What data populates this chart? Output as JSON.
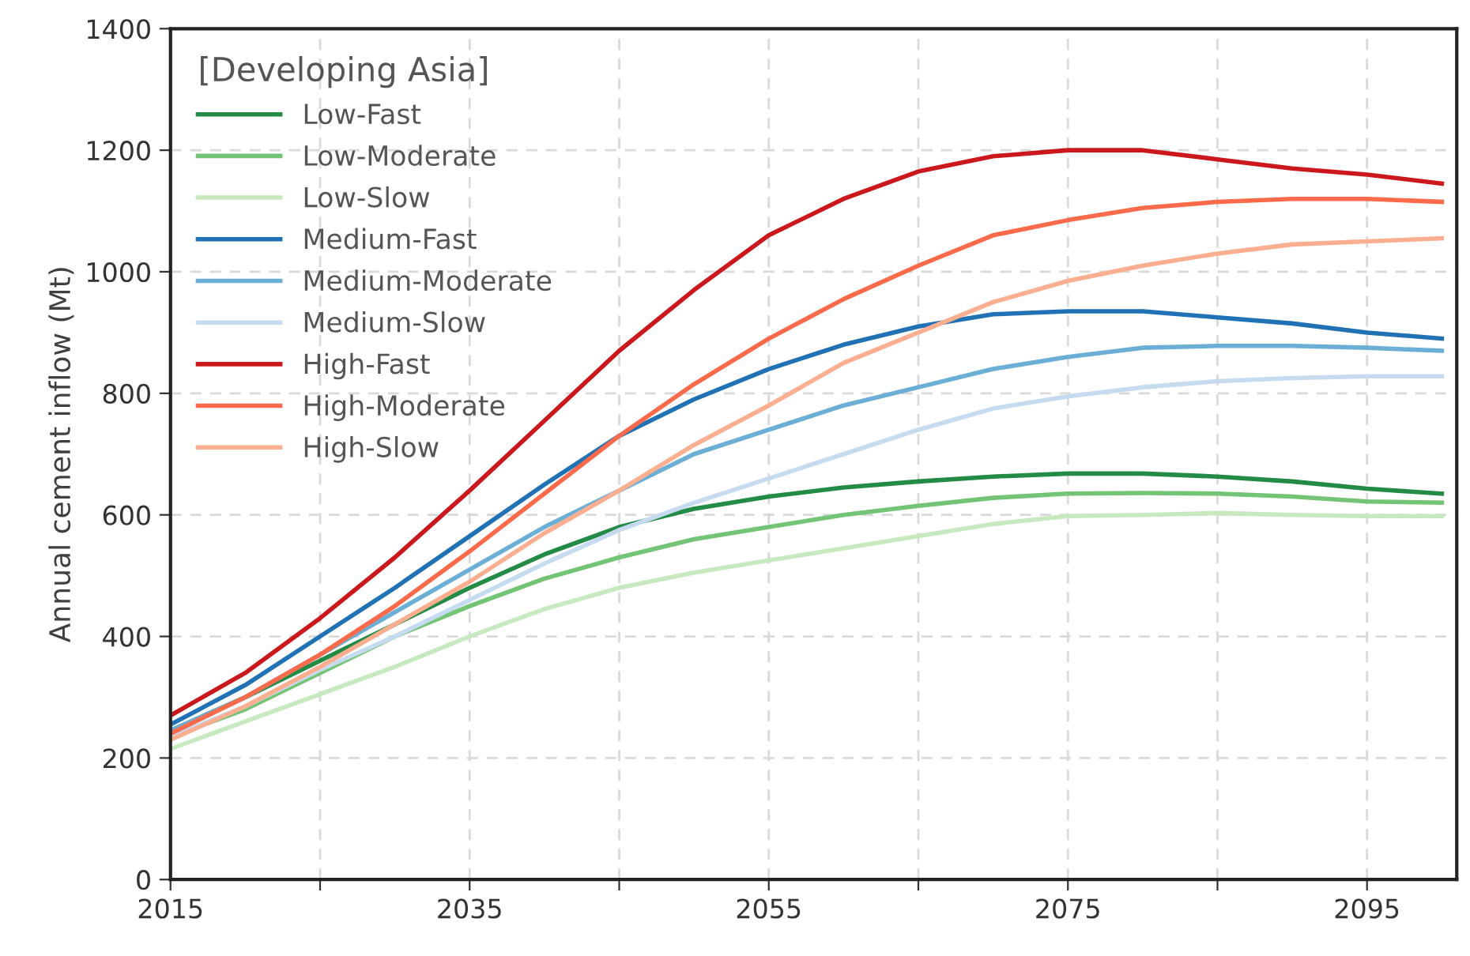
{
  "chart_data": {
    "type": "line",
    "ylabel": "Annual cement inflow (Mt)",
    "legend_title": "[Developing Asia]",
    "x": [
      2015,
      2020,
      2025,
      2030,
      2035,
      2040,
      2045,
      2050,
      2055,
      2060,
      2065,
      2070,
      2075,
      2080,
      2085,
      2090,
      2095,
      2100
    ],
    "series": [
      {
        "name": "Low-Fast",
        "color": "#238b45",
        "values": [
          245,
          300,
          360,
          420,
          480,
          535,
          580,
          610,
          630,
          645,
          655,
          663,
          668,
          668,
          663,
          655,
          643,
          635
        ]
      },
      {
        "name": "Low-Moderate",
        "color": "#74c476",
        "values": [
          235,
          280,
          340,
          400,
          450,
          495,
          530,
          560,
          580,
          600,
          615,
          628,
          635,
          636,
          635,
          630,
          622,
          620
        ]
      },
      {
        "name": "Low-Slow",
        "color": "#c7e9c0",
        "values": [
          215,
          260,
          305,
          350,
          400,
          445,
          480,
          505,
          525,
          545,
          565,
          585,
          598,
          600,
          603,
          600,
          598,
          598
        ]
      },
      {
        "name": "Medium-Fast",
        "color": "#2171b5",
        "values": [
          255,
          320,
          400,
          480,
          565,
          650,
          730,
          790,
          840,
          880,
          910,
          930,
          935,
          935,
          925,
          915,
          900,
          890
        ]
      },
      {
        "name": "Medium-Moderate",
        "color": "#6baed6",
        "values": [
          245,
          300,
          370,
          440,
          510,
          580,
          640,
          700,
          740,
          780,
          810,
          840,
          860,
          875,
          878,
          878,
          875,
          870
        ]
      },
      {
        "name": "Medium-Slow",
        "color": "#c6dbef",
        "values": [
          235,
          285,
          345,
          400,
          460,
          520,
          575,
          620,
          660,
          700,
          740,
          775,
          795,
          810,
          820,
          825,
          828,
          828
        ]
      },
      {
        "name": "High-Fast",
        "color": "#cb181d",
        "values": [
          270,
          340,
          430,
          530,
          640,
          755,
          870,
          970,
          1060,
          1120,
          1165,
          1190,
          1200,
          1200,
          1185,
          1170,
          1160,
          1145
        ]
      },
      {
        "name": "High-Moderate",
        "color": "#fb6a4a",
        "values": [
          240,
          300,
          370,
          450,
          540,
          635,
          730,
          815,
          890,
          955,
          1010,
          1060,
          1085,
          1105,
          1115,
          1120,
          1120,
          1115
        ]
      },
      {
        "name": "High-Slow",
        "color": "#fcae91",
        "values": [
          230,
          285,
          350,
          420,
          490,
          570,
          640,
          715,
          780,
          850,
          900,
          950,
          985,
          1010,
          1030,
          1045,
          1050,
          1055
        ]
      }
    ],
    "xlim": [
      2015,
      2101
    ],
    "ylim": [
      0,
      1400
    ],
    "xticks": [
      2015,
      {
        "value": 2025,
        "label": null
      },
      2035,
      {
        "value": 2045,
        "label": null
      },
      2055,
      {
        "value": 2065,
        "label": null
      },
      2075,
      {
        "value": 2085,
        "label": null
      },
      2095
    ],
    "yticks": [
      0,
      200,
      400,
      600,
      800,
      1000,
      1200,
      1400
    ],
    "grid": true,
    "legend": "top left",
    "marker": "none",
    "line_style": "solid"
  }
}
